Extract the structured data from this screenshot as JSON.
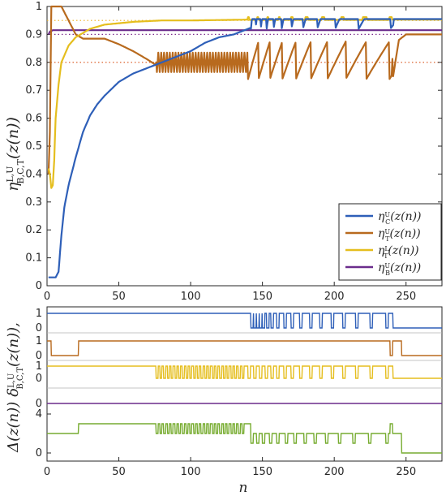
{
  "chart_data": [
    {
      "type": "line",
      "ylabel": "η^{L,U}_{B,C,T}(z(n))",
      "xlim": [
        0,
        275
      ],
      "ylim": [
        0,
        1
      ],
      "xticks": [
        0,
        50,
        100,
        150,
        200,
        250
      ],
      "yticks": [
        0,
        0.1,
        0.2,
        0.3,
        0.4,
        0.5,
        0.6,
        0.7,
        0.8,
        0.9,
        1
      ],
      "xtick_labels": [
        "0",
        "50",
        "100",
        "150",
        "200",
        "250"
      ],
      "ytick_labels": [
        "0",
        "0.1",
        "0.2",
        "0.3",
        "0.4",
        "0.5",
        "0.6",
        "0.7",
        "0.8",
        "0.9",
        "1"
      ],
      "grid": false,
      "legend_position": "bottom-right",
      "reference_lines": [
        {
          "y": 0.95,
          "color": "#EDB120",
          "style": "dotted"
        },
        {
          "y": 0.9,
          "color": "#7E2F8E",
          "style": "dotted"
        },
        {
          "y": 0.8,
          "color": "#D95319",
          "style": "dotted"
        }
      ],
      "series": [
        {
          "name": "η^U_C(z(n))",
          "color": "#2E5FB8",
          "x": [
            1,
            6,
            8,
            10,
            12,
            15,
            20,
            25,
            30,
            35,
            40,
            50,
            60,
            70,
            80,
            90,
            100,
            110,
            120,
            130,
            140,
            150,
            160,
            170,
            180,
            190,
            200,
            210,
            220,
            230,
            240,
            250,
            260,
            275
          ],
          "y": [
            0.03,
            0.03,
            0.05,
            0.18,
            0.28,
            0.36,
            0.46,
            0.55,
            0.61,
            0.65,
            0.68,
            0.73,
            0.76,
            0.78,
            0.8,
            0.82,
            0.84,
            0.87,
            0.89,
            0.9,
            0.92,
            0.94,
            0.95,
            0.95,
            0.95,
            0.95,
            0.95,
            0.955,
            0.955,
            0.955,
            0.955,
            0.955,
            0.955,
            0.955
          ],
          "oscillation": {
            "start": 142,
            "end": 241,
            "low": 0.92,
            "high": 0.955
          }
        },
        {
          "name": "η^U_T(z(n))",
          "color": "#B86A1E",
          "x": [
            1,
            2,
            3,
            4,
            10,
            20,
            25,
            30,
            40,
            50,
            60,
            70,
            76,
            80,
            100,
            130,
            140,
            150,
            200,
            230,
            240,
            241,
            245,
            250,
            275
          ],
          "y": [
            0.4,
            0.55,
            1,
            1,
            1,
            0.9,
            0.885,
            0.885,
            0.885,
            0.865,
            0.84,
            0.81,
            0.79,
            0.8,
            0.79,
            0.78,
            0.8,
            0.82,
            0.84,
            0.86,
            0.875,
            0.75,
            0.88,
            0.9,
            0.9
          ],
          "oscillation": {
            "start": 76,
            "end": 240,
            "low": 0.74,
            "high": 0.875
          }
        },
        {
          "name": "η^L_T(z(n))",
          "color": "#E5BE1E",
          "x": [
            1,
            2,
            3,
            4,
            5,
            6,
            8,
            10,
            15,
            20,
            30,
            40,
            50,
            60,
            80,
            100,
            140,
            275
          ],
          "y": [
            0.42,
            0.4,
            0.35,
            0.36,
            0.45,
            0.6,
            0.72,
            0.8,
            0.86,
            0.89,
            0.92,
            0.935,
            0.94,
            0.945,
            0.95,
            0.95,
            0.953,
            0.953
          ],
          "oscillation": {
            "start": 140,
            "end": 240,
            "low": 0.945,
            "high": 0.962
          }
        },
        {
          "name": "η^U_B(z(n))",
          "color": "#6B2C8C",
          "x": [
            1,
            2,
            4,
            6,
            275
          ],
          "y": [
            0.9,
            0.91,
            0.915,
            0.915,
            0.915
          ]
        }
      ]
    },
    {
      "type": "line",
      "ylabel": "δ^{L,U}_{B,C,T}(z(n)),",
      "xlim": [
        0,
        275
      ],
      "ytick_labels_strip": [
        "0",
        "1"
      ],
      "strips": [
        {
          "name": "η^U_C",
          "color": "#2E5FB8",
          "segments": [
            [
              0,
              1
            ],
            [
              142,
              1
            ]
          ],
          "pulses_to_0": [
            142,
            144,
            146,
            148,
            150,
            153,
            156,
            160,
            165,
            170,
            176,
            183,
            190,
            198,
            206,
            215,
            225,
            236
          ],
          "after": {
            "from": 241,
            "value": 0
          }
        },
        {
          "name": "η^U_T",
          "color": "#B86A1E",
          "segments": [
            [
              0,
              1
            ],
            [
              3,
              0
            ],
            [
              22,
              1
            ]
          ],
          "pulses_to_0": [
            239
          ],
          "after": {
            "from": 247,
            "value": 0
          }
        },
        {
          "name": "η^L_T",
          "color": "#E5BE1E",
          "segments": [
            [
              0,
              1
            ]
          ],
          "pulses_to_0_dense": {
            "start": 76,
            "end": 137,
            "period": 2.6
          },
          "pulses_to_0": [
            140,
            144,
            148,
            152,
            156,
            160,
            165,
            170,
            176,
            183,
            190,
            198,
            206,
            215,
            225,
            236
          ],
          "after": {
            "from": 241,
            "value": 0
          }
        },
        {
          "name": "η^U_B",
          "color": "#6B2C8C",
          "segments": [
            [
              0,
              0
            ]
          ]
        }
      ]
    },
    {
      "type": "line",
      "ylabel": "Δ(z(n))",
      "xlabel": "n",
      "xlim": [
        0,
        275
      ],
      "yticks": [
        0,
        4
      ],
      "ytick_labels": [
        "0",
        "4"
      ],
      "xticks": [
        0,
        50,
        100,
        150,
        200,
        250
      ],
      "xtick_labels": [
        "0",
        "50",
        "100",
        "150",
        "200",
        "250"
      ],
      "series": [
        {
          "name": "Δ(z(n))",
          "color": "#77AC30",
          "steps": [
            [
              0,
              2
            ],
            [
              22,
              3
            ],
            [
              76,
              3
            ],
            [
              137,
              3
            ],
            [
              142,
              2
            ],
            [
              247,
              0
            ],
            [
              275,
              0
            ]
          ],
          "dense_oscillation": {
            "start": 76,
            "end": 137,
            "low": 2,
            "high": 3,
            "period": 2.6
          },
          "pulses_to_1": [
            142,
            146,
            150,
            155,
            160,
            166,
            172,
            179,
            186,
            194,
            203,
            213,
            224,
            236
          ],
          "pulses_to_3": [
            239
          ]
        }
      ]
    }
  ],
  "legend": [
    {
      "label": "η^U_C(z(n))",
      "color": "#2E5FB8"
    },
    {
      "label": "η^U_T(z(n))",
      "color": "#B86A1E"
    },
    {
      "label": "η^L_T(z(n))",
      "color": "#E5BE1E"
    },
    {
      "label": "η^U_B(z(n))",
      "color": "#6B2C8C"
    }
  ],
  "labels": {
    "top_ylabel_eta": "η",
    "top_ylabel_sup": "L,U",
    "top_ylabel_sub": "B,C,T",
    "top_ylabel_arg": "(z(n))",
    "bottom_ylabel_delta": "δ",
    "bottom_ylabel_sup": "L,U",
    "bottom_ylabel_sub": "B,C,T",
    "bottom_ylabel_arg": "(z(n)),",
    "bottom_ylabel_Delta": "Δ(z(n))",
    "xlabel": "n"
  }
}
